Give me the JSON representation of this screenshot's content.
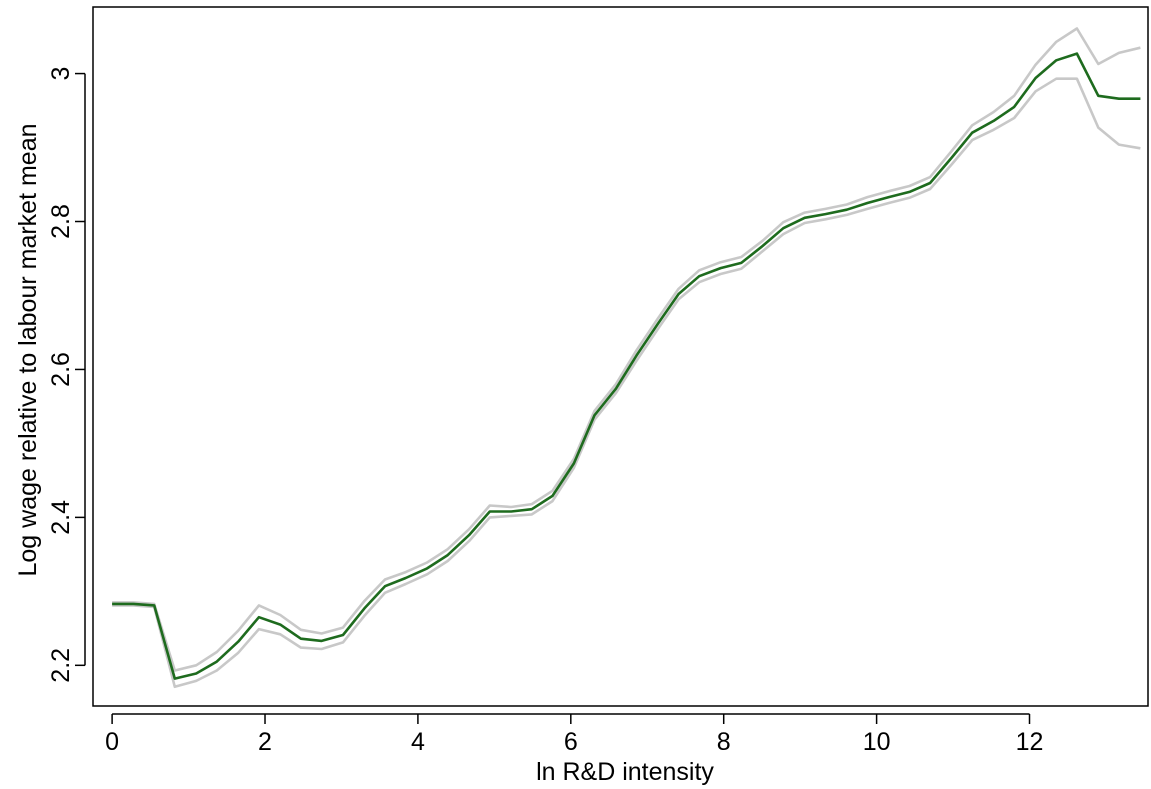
{
  "chart_data": {
    "type": "line",
    "title": "",
    "xlabel": "ln R&D intensity",
    "ylabel": "Log wage relative to labour market mean",
    "xlim": [
      -0.25,
      13.55
    ],
    "ylim": [
      2.145,
      3.09
    ],
    "x_ticks": [
      0,
      2,
      4,
      6,
      8,
      10,
      12
    ],
    "x_tick_labels": [
      "0",
      "2",
      "4",
      "6",
      "8",
      "10",
      "12"
    ],
    "y_ticks": [
      2.2,
      2.4,
      2.6,
      2.8,
      3.0
    ],
    "y_tick_labels": [
      "2.2",
      "2.4",
      "2.6",
      "2.8",
      "3"
    ],
    "grid": false,
    "legend": "none",
    "series": [
      {
        "role": "estimate",
        "color": "#1e6b1e",
        "points": [
          [
            0.0,
            2.283
          ],
          [
            0.28,
            2.283
          ],
          [
            0.55,
            2.281
          ],
          [
            0.82,
            2.182
          ],
          [
            1.1,
            2.189
          ],
          [
            1.37,
            2.205
          ],
          [
            1.65,
            2.232
          ],
          [
            1.92,
            2.265
          ],
          [
            2.2,
            2.255
          ],
          [
            2.47,
            2.236
          ],
          [
            2.74,
            2.233
          ],
          [
            3.02,
            2.241
          ],
          [
            3.3,
            2.277
          ],
          [
            3.57,
            2.307
          ],
          [
            3.84,
            2.318
          ],
          [
            4.12,
            2.331
          ],
          [
            4.39,
            2.349
          ],
          [
            4.67,
            2.376
          ],
          [
            4.94,
            2.408
          ],
          [
            5.22,
            2.408
          ],
          [
            5.49,
            2.411
          ],
          [
            5.76,
            2.429
          ],
          [
            6.04,
            2.473
          ],
          [
            6.31,
            2.538
          ],
          [
            6.59,
            2.574
          ],
          [
            6.86,
            2.619
          ],
          [
            7.14,
            2.662
          ],
          [
            7.41,
            2.702
          ],
          [
            7.68,
            2.726
          ],
          [
            7.96,
            2.737
          ],
          [
            8.23,
            2.744
          ],
          [
            8.51,
            2.767
          ],
          [
            8.78,
            2.791
          ],
          [
            9.06,
            2.805
          ],
          [
            9.33,
            2.81
          ],
          [
            9.61,
            2.816
          ],
          [
            9.88,
            2.825
          ],
          [
            10.16,
            2.833
          ],
          [
            10.43,
            2.84
          ],
          [
            10.7,
            2.852
          ],
          [
            10.98,
            2.886
          ],
          [
            11.25,
            2.92
          ],
          [
            11.53,
            2.936
          ],
          [
            11.8,
            2.955
          ],
          [
            12.08,
            2.994
          ],
          [
            12.35,
            3.018
          ],
          [
            12.62,
            3.027
          ],
          [
            12.9,
            2.97
          ],
          [
            13.17,
            2.966
          ],
          [
            13.45,
            2.966
          ]
        ]
      },
      {
        "role": "upper-ci",
        "color": "#c8c8c8",
        "points": [
          [
            0.0,
            2.285
          ],
          [
            0.28,
            2.285
          ],
          [
            0.55,
            2.283
          ],
          [
            0.82,
            2.193
          ],
          [
            1.1,
            2.2
          ],
          [
            1.37,
            2.218
          ],
          [
            1.65,
            2.247
          ],
          [
            1.92,
            2.281
          ],
          [
            2.2,
            2.268
          ],
          [
            2.47,
            2.248
          ],
          [
            2.74,
            2.243
          ],
          [
            3.02,
            2.251
          ],
          [
            3.3,
            2.287
          ],
          [
            3.57,
            2.316
          ],
          [
            3.84,
            2.326
          ],
          [
            4.12,
            2.339
          ],
          [
            4.39,
            2.357
          ],
          [
            4.67,
            2.384
          ],
          [
            4.94,
            2.416
          ],
          [
            5.22,
            2.414
          ],
          [
            5.49,
            2.418
          ],
          [
            5.76,
            2.436
          ],
          [
            6.04,
            2.479
          ],
          [
            6.31,
            2.544
          ],
          [
            6.59,
            2.58
          ],
          [
            6.86,
            2.626
          ],
          [
            7.14,
            2.669
          ],
          [
            7.41,
            2.709
          ],
          [
            7.68,
            2.734
          ],
          [
            7.96,
            2.745
          ],
          [
            8.23,
            2.752
          ],
          [
            8.51,
            2.774
          ],
          [
            8.78,
            2.799
          ],
          [
            9.06,
            2.812
          ],
          [
            9.33,
            2.817
          ],
          [
            9.61,
            2.823
          ],
          [
            9.88,
            2.833
          ],
          [
            10.16,
            2.841
          ],
          [
            10.43,
            2.848
          ],
          [
            10.7,
            2.86
          ],
          [
            10.98,
            2.895
          ],
          [
            11.25,
            2.93
          ],
          [
            11.53,
            2.948
          ],
          [
            11.8,
            2.97
          ],
          [
            12.08,
            3.012
          ],
          [
            12.35,
            3.043
          ],
          [
            12.62,
            3.061
          ],
          [
            12.9,
            3.013
          ],
          [
            13.17,
            3.028
          ],
          [
            13.45,
            3.035
          ]
        ]
      },
      {
        "role": "lower-ci",
        "color": "#c8c8c8",
        "points": [
          [
            0.0,
            2.281
          ],
          [
            0.28,
            2.281
          ],
          [
            0.55,
            2.279
          ],
          [
            0.82,
            2.171
          ],
          [
            1.1,
            2.179
          ],
          [
            1.37,
            2.193
          ],
          [
            1.65,
            2.217
          ],
          [
            1.92,
            2.249
          ],
          [
            2.2,
            2.242
          ],
          [
            2.47,
            2.224
          ],
          [
            2.74,
            2.222
          ],
          [
            3.02,
            2.231
          ],
          [
            3.3,
            2.267
          ],
          [
            3.57,
            2.298
          ],
          [
            3.84,
            2.31
          ],
          [
            4.12,
            2.323
          ],
          [
            4.39,
            2.341
          ],
          [
            4.67,
            2.368
          ],
          [
            4.94,
            2.4
          ],
          [
            5.22,
            2.402
          ],
          [
            5.49,
            2.404
          ],
          [
            5.76,
            2.422
          ],
          [
            6.04,
            2.467
          ],
          [
            6.31,
            2.532
          ],
          [
            6.59,
            2.568
          ],
          [
            6.86,
            2.612
          ],
          [
            7.14,
            2.655
          ],
          [
            7.41,
            2.695
          ],
          [
            7.68,
            2.718
          ],
          [
            7.96,
            2.729
          ],
          [
            8.23,
            2.736
          ],
          [
            8.51,
            2.76
          ],
          [
            8.78,
            2.783
          ],
          [
            9.06,
            2.798
          ],
          [
            9.33,
            2.803
          ],
          [
            9.61,
            2.809
          ],
          [
            9.88,
            2.817
          ],
          [
            10.16,
            2.825
          ],
          [
            10.43,
            2.832
          ],
          [
            10.7,
            2.844
          ],
          [
            10.98,
            2.877
          ],
          [
            11.25,
            2.91
          ],
          [
            11.53,
            2.924
          ],
          [
            11.8,
            2.94
          ],
          [
            12.08,
            2.976
          ],
          [
            12.35,
            2.993
          ],
          [
            12.62,
            2.993
          ],
          [
            12.9,
            2.927
          ],
          [
            13.17,
            2.904
          ],
          [
            13.45,
            2.899
          ]
        ]
      }
    ]
  }
}
